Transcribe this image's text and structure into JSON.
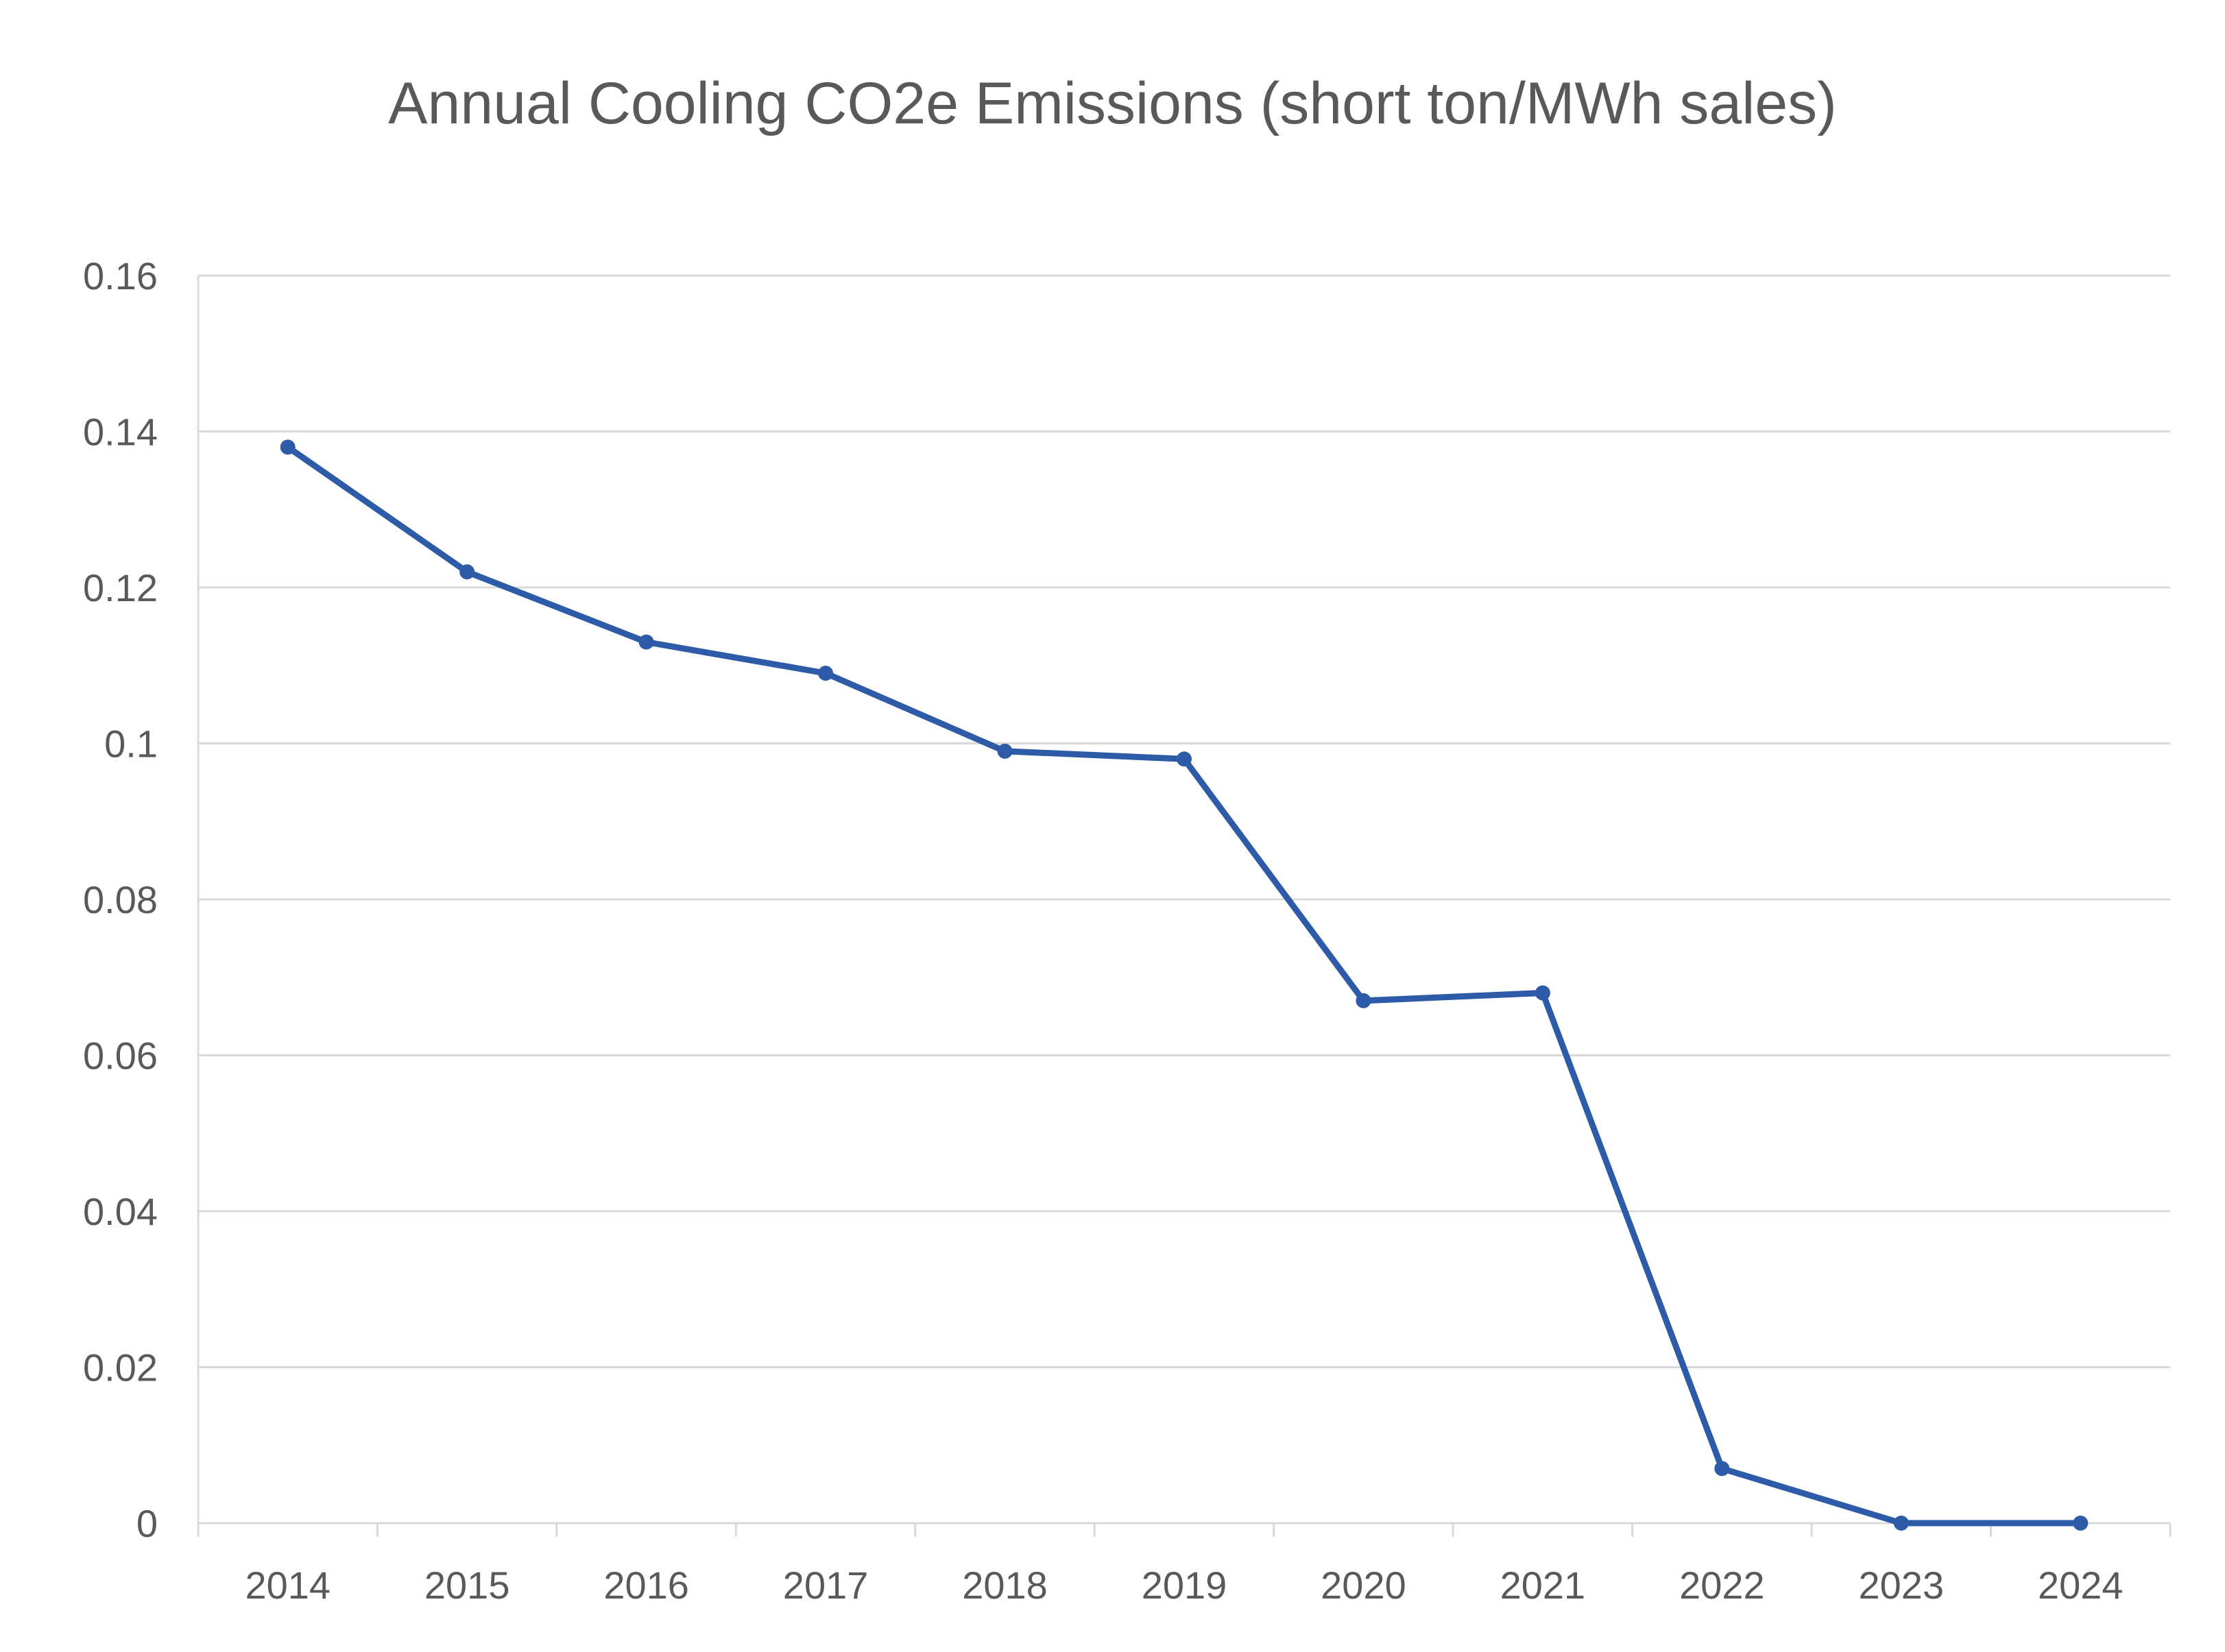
{
  "chart_data": {
    "type": "line",
    "title": "Annual Cooling CO2e Emissions (short ton/MWh sales)",
    "xlabel": "",
    "ylabel": "",
    "categories": [
      "2014",
      "2015",
      "2016",
      "2017",
      "2018",
      "2019",
      "2020",
      "2021",
      "2022",
      "2023",
      "2024"
    ],
    "series": [
      {
        "values": [
          0.138,
          0.122,
          0.113,
          0.109,
          0.099,
          0.098,
          0.067,
          0.068,
          0.007,
          0,
          0
        ]
      }
    ],
    "ylim": [
      0,
      0.16
    ],
    "y_ticks": [
      "0",
      "0.02",
      "0.04",
      "0.06",
      "0.08",
      "0.1",
      "0.12",
      "0.14",
      "0.16"
    ],
    "grid": true,
    "legend": "none",
    "colors": {
      "series": "#2e5ba8",
      "grid": "#d9d9d9",
      "text": "#595959"
    }
  }
}
